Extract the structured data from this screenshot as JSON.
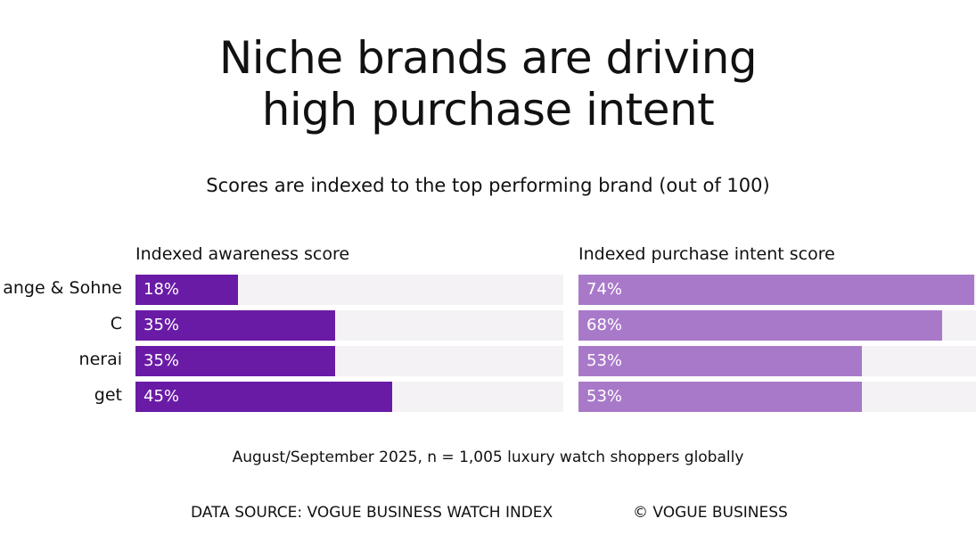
{
  "title_lines": [
    "Niche brands are driving",
    "high purchase intent"
  ],
  "subtitle": "Scores are indexed to the top performing brand (out of 100)",
  "footnote": "August/September 2025, n = 1,005 luxury watch shoppers globally",
  "source": "DATA SOURCE: VOGUE BUSINESS WATCH INDEX",
  "copyright": "© VOGUE BUSINESS",
  "colors": {
    "awareness": "#6a1ba6",
    "intent": "#a979c9",
    "track": "#f4f2f5"
  },
  "chart_data": {
    "type": "bar",
    "orientation": "horizontal",
    "title": "Niche brands are driving high purchase intent",
    "subtitle": "Scores are indexed to the top performing brand (out of 100)",
    "categories": [
      "ange & Sohne",
      "C",
      "nerai",
      "get"
    ],
    "xlim": [
      0,
      100
    ],
    "series": [
      {
        "name": "Indexed awareness score",
        "values": [
          18,
          35,
          35,
          45
        ],
        "labels": [
          "18%",
          "35%",
          "35%",
          "45%"
        ]
      },
      {
        "name": "Indexed purchase intent score",
        "values": [
          74,
          68,
          53,
          53
        ],
        "labels": [
          "74%",
          "68%",
          "53%",
          "53%"
        ]
      }
    ]
  }
}
